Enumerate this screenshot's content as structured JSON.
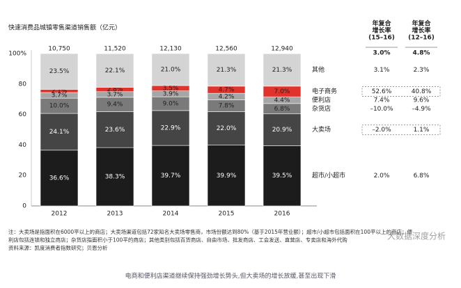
{
  "chart_data": {
    "type": "stacked_bar",
    "title": "快速消费品城镇零售渠道销售额（亿元）",
    "categories": [
      "2012",
      "2013",
      "2014",
      "2015",
      "2016"
    ],
    "totals": {
      "values": [
        10750,
        11520,
        12130,
        12560,
        12940
      ],
      "value_labels": [
        "10,750",
        "11,520",
        "12,130",
        "12,560",
        "12,940"
      ]
    },
    "ylim": [
      0,
      100
    ],
    "yticks": [
      0,
      20,
      40,
      60,
      80,
      {
        "value": 100,
        "label": "100%"
      }
    ],
    "cagr_headers": [
      [
        "年复合",
        "增长率",
        "(15–16)"
      ],
      [
        "年复合",
        "增长率",
        "(12–16)"
      ]
    ],
    "cagr_total": {
      "values": [
        3.0,
        4.8
      ],
      "value_labels": [
        "3.0%",
        "4.8%"
      ]
    },
    "series": [
      {
        "name": "超市/小超市",
        "color": "#1c1c1c",
        "values": [
          36.6,
          38.3,
          39.7,
          39.9,
          39.5
        ],
        "value_labels": [
          "36.6%",
          "38.3%",
          "39.7%",
          "39.9%",
          "39.5%"
        ],
        "cagr": {
          "values": [
            2.0,
            6.8
          ],
          "value_labels": [
            "2.0%",
            "6.8%"
          ]
        }
      },
      {
        "name": "大卖场",
        "color": "#454545",
        "values": [
          24.1,
          23.6,
          22.9,
          22.0,
          20.9
        ],
        "value_labels": [
          "24.1%",
          "23.6%",
          "22.9%",
          "22.0%",
          "20.9%"
        ],
        "cagr": {
          "values": [
            -2.0,
            1.1
          ],
          "value_labels": [
            "–2.0%",
            "1.1%"
          ]
        },
        "boxed": true
      },
      {
        "name": "杂货店",
        "color": "#7a7a7a",
        "values": [
          10.0,
          9.4,
          9.0,
          7.8,
          6.8
        ],
        "value_labels": [
          "10.0%",
          "9.4%",
          "9.0%",
          "7.8%",
          "6.8%"
        ],
        "cagr": {
          "values": [
            -10.0,
            -4.9
          ],
          "value_labels": [
            "–10.0%",
            "–4.9%"
          ]
        }
      },
      {
        "name": "便利店",
        "color": "#a6a6a6",
        "values": [
          3.7,
          3.7,
          3.9,
          4.2,
          4.4
        ],
        "value_labels": [
          "3.7%",
          "3.7%",
          "3.9%",
          "4.2%",
          "4.4%"
        ],
        "cagr": {
          "values": [
            7.4,
            9.6
          ],
          "value_labels": [
            "7.4%",
            "9.6%"
          ]
        }
      },
      {
        "name": "电子商务",
        "color": "#e0332b",
        "values": [
          2.1,
          2.8,
          3.5,
          4.7,
          7.0
        ],
        "value_labels": [
          "2.1%",
          "2.8%",
          "3.5%",
          "4.7%",
          "7.0%"
        ],
        "cagr": {
          "values": [
            52.6,
            40.8
          ],
          "value_labels": [
            "52.6%",
            "40.8%"
          ]
        },
        "boxed": true
      },
      {
        "name": "其他",
        "color": "#d4d4d4",
        "values": [
          23.5,
          22.1,
          21.0,
          21.3,
          21.3
        ],
        "value_labels": [
          "23.5%",
          "22.1%",
          "21.0%",
          "21.3%",
          "21.3%"
        ],
        "cagr": {
          "values": [
            3.1,
            2.3
          ],
          "value_labels": [
            "3.1%",
            "2.3%"
          ]
        }
      }
    ]
  },
  "notes": [
    "注：大卖场是指面积在6000平以上的商店；大卖场渠道包括72家知名大卖场零售商，市场份额达到80%（基于2015年营业额）；超市/小超市包括面积在100平以上的商店；便",
    "利店包括连锁和独立商店；杂货店指面积小于100平的商店；其他类别包括百货商店、自由市场、批发商店、工会发送、直营店、专卖店和海外代购",
    "资料来源：凯度消费者指数研究；贝恩分析"
  ],
  "watermark": "大数据深度分析",
  "caption": "电商和便利店渠道继续保持强劲增长势头,但大卖场的增长放缓,甚至出现下滑"
}
